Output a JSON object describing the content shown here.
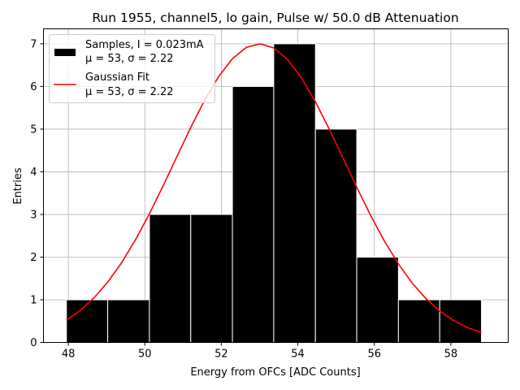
{
  "chart_data": {
    "type": "bar",
    "title": "Run 1955, channel5, lo gain, Pulse w/ 50.0 dB Attenuation",
    "xlabel": "Energy from OFCs [ADC Counts]",
    "ylabel": "Entries",
    "xlim": [
      47.35,
      59.5
    ],
    "ylim": [
      0,
      7.35
    ],
    "xticks": [
      48,
      50,
      52,
      54,
      56,
      58
    ],
    "yticks": [
      0,
      1,
      2,
      3,
      4,
      5,
      6,
      7
    ],
    "grid": true,
    "bins": [
      {
        "x0": 47.95,
        "x1": 49.03,
        "count": 1
      },
      {
        "x0": 49.03,
        "x1": 50.12,
        "count": 1
      },
      {
        "x0": 50.12,
        "x1": 51.2,
        "count": 3
      },
      {
        "x0": 51.2,
        "x1": 52.29,
        "count": 3
      },
      {
        "x0": 52.29,
        "x1": 53.37,
        "count": 6
      },
      {
        "x0": 53.37,
        "x1": 54.46,
        "count": 7
      },
      {
        "x0": 54.46,
        "x1": 55.54,
        "count": 5
      },
      {
        "x0": 55.54,
        "x1": 56.63,
        "count": 2
      },
      {
        "x0": 56.63,
        "x1": 57.71,
        "count": 1
      },
      {
        "x0": 57.71,
        "x1": 58.8,
        "count": 1
      }
    ],
    "fit": {
      "name": "Gaussian Fit",
      "mu": 53.0,
      "sigma": 2.22,
      "amplitude": 7.0,
      "x_start": 47.95,
      "x_end": 58.8,
      "color": "#ff0000"
    },
    "hist_color": "#000000",
    "legend": [
      {
        "label": "Samples, I = 0.023mA",
        "sub": "μ = 53, σ = 2.22",
        "kind": "patch"
      },
      {
        "label": "Gaussian Fit",
        "sub": "μ = 53, σ = 2.22",
        "kind": "line"
      }
    ],
    "legend_position": "top-left"
  }
}
